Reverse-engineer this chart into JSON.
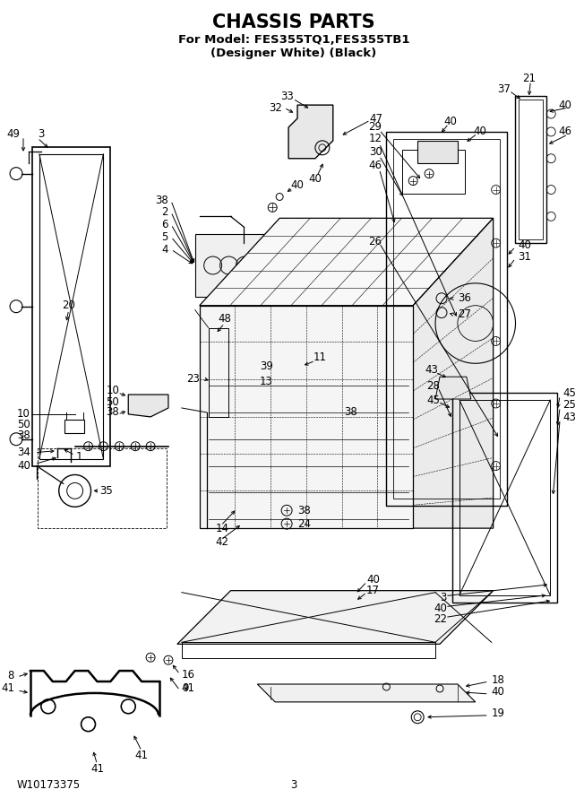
{
  "title_line1": "CHASSIS PARTS",
  "title_line2": "For Model: FES355TQ1,FES355TB1",
  "title_line3": "(Designer White) (Black)",
  "footer_left": "W10173375",
  "footer_center": "3",
  "bg_color": "#ffffff",
  "line_color": "#000000",
  "title_fontsize": 15,
  "subtitle_fontsize": 9.5,
  "label_fontsize": 8.5,
  "footer_fontsize": 8.5,
  "figsize": [
    6.52,
    9.0
  ],
  "dpi": 100
}
